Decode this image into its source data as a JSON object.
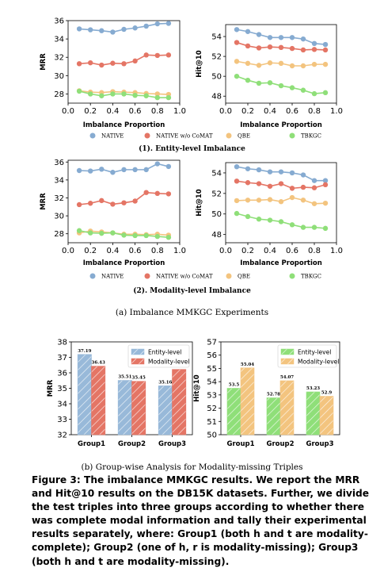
{
  "section_titles": {
    "entity": "(1). Entity-level Imbalance",
    "modality": "(2). Modality-level Imbalance"
  },
  "subcaptions": {
    "a": "(a) Imbalance MMKGC Experiments",
    "b": "(b) Group-wise Analysis for Modality-missing Triples"
  },
  "figure_caption": "Figure 3: The imbalance MMKGC results. We report the MRR and Hit@10 results on the DB15K datasets. Further, we divide the test triples into three groups according to whether there was complete modal information and tally their experimental results separately, where: Group1 (both h and t are modality-complete); Group2 (one of h, r is modality-missing); Group3 (both h and t are modality-missing).",
  "colors": {
    "NATIVE": "#86abd1",
    "NATIVE w/o CoMAT": "#e47565",
    "QBE": "#f3c47f",
    "TBKGC": "#8fdf79",
    "entity_bar_blue": "#98b9d9",
    "modality_bar_red": "#e47565",
    "entity_bar_green": "#8fdf79",
    "modality_bar_orange": "#f3c47f"
  },
  "legend_series": [
    "NATIVE",
    "NATIVE w/o CoMAT",
    "QBE",
    "TBKGC"
  ],
  "chart_data": [
    {
      "id": "entity-mrr",
      "type": "line",
      "xlabel": "Imbalance Proportion",
      "ylabel": "MRR",
      "xlim": [
        0.0,
        1.0
      ],
      "ylim": [
        27,
        36
      ],
      "xticks": [
        "0.0",
        "0.2",
        "0.4",
        "0.6",
        "0.8",
        "1.0"
      ],
      "yticks": [
        "28",
        "30",
        "32",
        "34",
        "36"
      ],
      "x": [
        0.1,
        0.2,
        0.3,
        0.4,
        0.5,
        0.6,
        0.7,
        0.8,
        0.9
      ],
      "series": [
        {
          "name": "NATIVE",
          "values": [
            35.1,
            35.0,
            34.9,
            34.75,
            35.05,
            35.2,
            35.4,
            35.65,
            35.7
          ]
        },
        {
          "name": "NATIVE w/o CoMAT",
          "values": [
            31.3,
            31.4,
            31.15,
            31.35,
            31.3,
            31.6,
            32.25,
            32.2,
            32.25
          ]
        },
        {
          "name": "QBE",
          "values": [
            28.35,
            28.2,
            28.15,
            28.25,
            28.2,
            28.15,
            28.05,
            28.0,
            27.95
          ]
        },
        {
          "name": "TBKGC",
          "values": [
            28.3,
            28.0,
            27.8,
            28.0,
            28.0,
            27.85,
            27.8,
            27.6,
            27.6
          ]
        }
      ]
    },
    {
      "id": "entity-hit",
      "type": "line",
      "xlabel": "Imbalance Proportion",
      "ylabel": "Hit@10",
      "xlim": [
        0.0,
        1.0
      ],
      "ylim": [
        47.3,
        55.2
      ],
      "xticks": [
        "0.0",
        "0.2",
        "0.4",
        "0.6",
        "0.8",
        "1.0"
      ],
      "yticks": [
        "48",
        "50",
        "52",
        "54"
      ],
      "x": [
        0.1,
        0.2,
        0.3,
        0.4,
        0.5,
        0.6,
        0.7,
        0.8,
        0.9
      ],
      "series": [
        {
          "name": "NATIVE",
          "values": [
            54.7,
            54.5,
            54.2,
            53.9,
            53.9,
            53.9,
            53.75,
            53.3,
            53.2
          ]
        },
        {
          "name": "NATIVE w/o CoMAT",
          "values": [
            53.4,
            53.05,
            52.85,
            52.95,
            52.9,
            52.8,
            52.65,
            52.7,
            52.65
          ]
        },
        {
          "name": "QBE",
          "values": [
            51.5,
            51.3,
            51.1,
            51.35,
            51.3,
            51.05,
            51.05,
            51.2,
            51.2
          ]
        },
        {
          "name": "TBKGC",
          "values": [
            50.0,
            49.6,
            49.3,
            49.35,
            49.05,
            48.85,
            48.6,
            48.25,
            48.35
          ]
        }
      ]
    },
    {
      "id": "modality-mrr",
      "type": "line",
      "xlabel": "Imbalance Proportion",
      "ylabel": "MRR",
      "xlim": [
        0.0,
        1.0
      ],
      "ylim": [
        27,
        36.2
      ],
      "xticks": [
        "0.0",
        "0.2",
        "0.4",
        "0.6",
        "0.8",
        "1.0"
      ],
      "yticks": [
        "28",
        "30",
        "32",
        "34",
        "36"
      ],
      "x": [
        0.1,
        0.2,
        0.3,
        0.4,
        0.5,
        0.6,
        0.7,
        0.8,
        0.9
      ],
      "series": [
        {
          "name": "NATIVE",
          "values": [
            35.05,
            35.0,
            35.2,
            34.85,
            35.15,
            35.15,
            35.15,
            35.8,
            35.5
          ]
        },
        {
          "name": "NATIVE w/o CoMAT",
          "values": [
            31.25,
            31.4,
            31.7,
            31.3,
            31.45,
            31.65,
            32.6,
            32.5,
            32.45
          ]
        },
        {
          "name": "QBE",
          "values": [
            28.1,
            28.3,
            28.2,
            28.1,
            27.95,
            27.95,
            27.9,
            27.95,
            27.85
          ]
        },
        {
          "name": "TBKGC",
          "values": [
            28.35,
            28.1,
            28.05,
            28.1,
            27.85,
            27.8,
            27.8,
            27.7,
            27.6
          ]
        }
      ]
    },
    {
      "id": "modality-hit",
      "type": "line",
      "xlabel": "Imbalance Proportion",
      "ylabel": "Hit@10",
      "xlim": [
        0.0,
        1.0
      ],
      "ylim": [
        47.2,
        55.0
      ],
      "xticks": [
        "0.0",
        "0.2",
        "0.4",
        "0.6",
        "0.8",
        "1.0"
      ],
      "yticks": [
        "48",
        "50",
        "52",
        "54"
      ],
      "x": [
        0.1,
        0.2,
        0.3,
        0.4,
        0.5,
        0.6,
        0.7,
        0.8,
        0.9
      ],
      "series": [
        {
          "name": "NATIVE",
          "values": [
            54.6,
            54.4,
            54.3,
            54.1,
            54.1,
            54.0,
            53.8,
            53.25,
            53.25
          ]
        },
        {
          "name": "NATIVE w/o CoMAT",
          "values": [
            53.2,
            53.05,
            52.95,
            52.7,
            52.95,
            52.5,
            52.6,
            52.55,
            52.85
          ]
        },
        {
          "name": "QBE",
          "values": [
            51.3,
            51.35,
            51.35,
            51.4,
            51.2,
            51.6,
            51.35,
            51.0,
            51.05
          ]
        },
        {
          "name": "TBKGC",
          "values": [
            50.05,
            49.75,
            49.5,
            49.4,
            49.25,
            48.95,
            48.7,
            48.7,
            48.6
          ]
        }
      ]
    },
    {
      "id": "group-mrr",
      "type": "bar",
      "ylabel": "MRR",
      "ylim": [
        32,
        38
      ],
      "yticks": [
        "32",
        "33",
        "34",
        "35",
        "36",
        "37",
        "38"
      ],
      "categories": [
        "Group1",
        "Group2",
        "Group3"
      ],
      "series": [
        {
          "name": "Entity-level",
          "values": [
            37.19,
            35.51,
            35.16
          ],
          "labels": [
            "37.19",
            "35.51",
            "35.16"
          ]
        },
        {
          "name": "Modality-level",
          "values": [
            36.43,
            35.45,
            36.22
          ],
          "labels": [
            "36.43",
            "35.45",
            "36.22"
          ]
        }
      ]
    },
    {
      "id": "group-hit",
      "type": "bar",
      "ylabel": "Hit@10",
      "ylim": [
        50,
        57
      ],
      "yticks": [
        "50",
        "51",
        "52",
        "53",
        "54",
        "55",
        "56",
        "57"
      ],
      "categories": [
        "Group1",
        "Group2",
        "Group3"
      ],
      "series": [
        {
          "name": "Entity-level",
          "values": [
            53.5,
            52.78,
            53.23
          ],
          "labels": [
            "53.5",
            "52.78",
            "53.23"
          ]
        },
        {
          "name": "Modality-level",
          "values": [
            55.04,
            54.07,
            52.9
          ],
          "labels": [
            "55.04",
            "54.07",
            "52.9"
          ]
        }
      ]
    }
  ]
}
